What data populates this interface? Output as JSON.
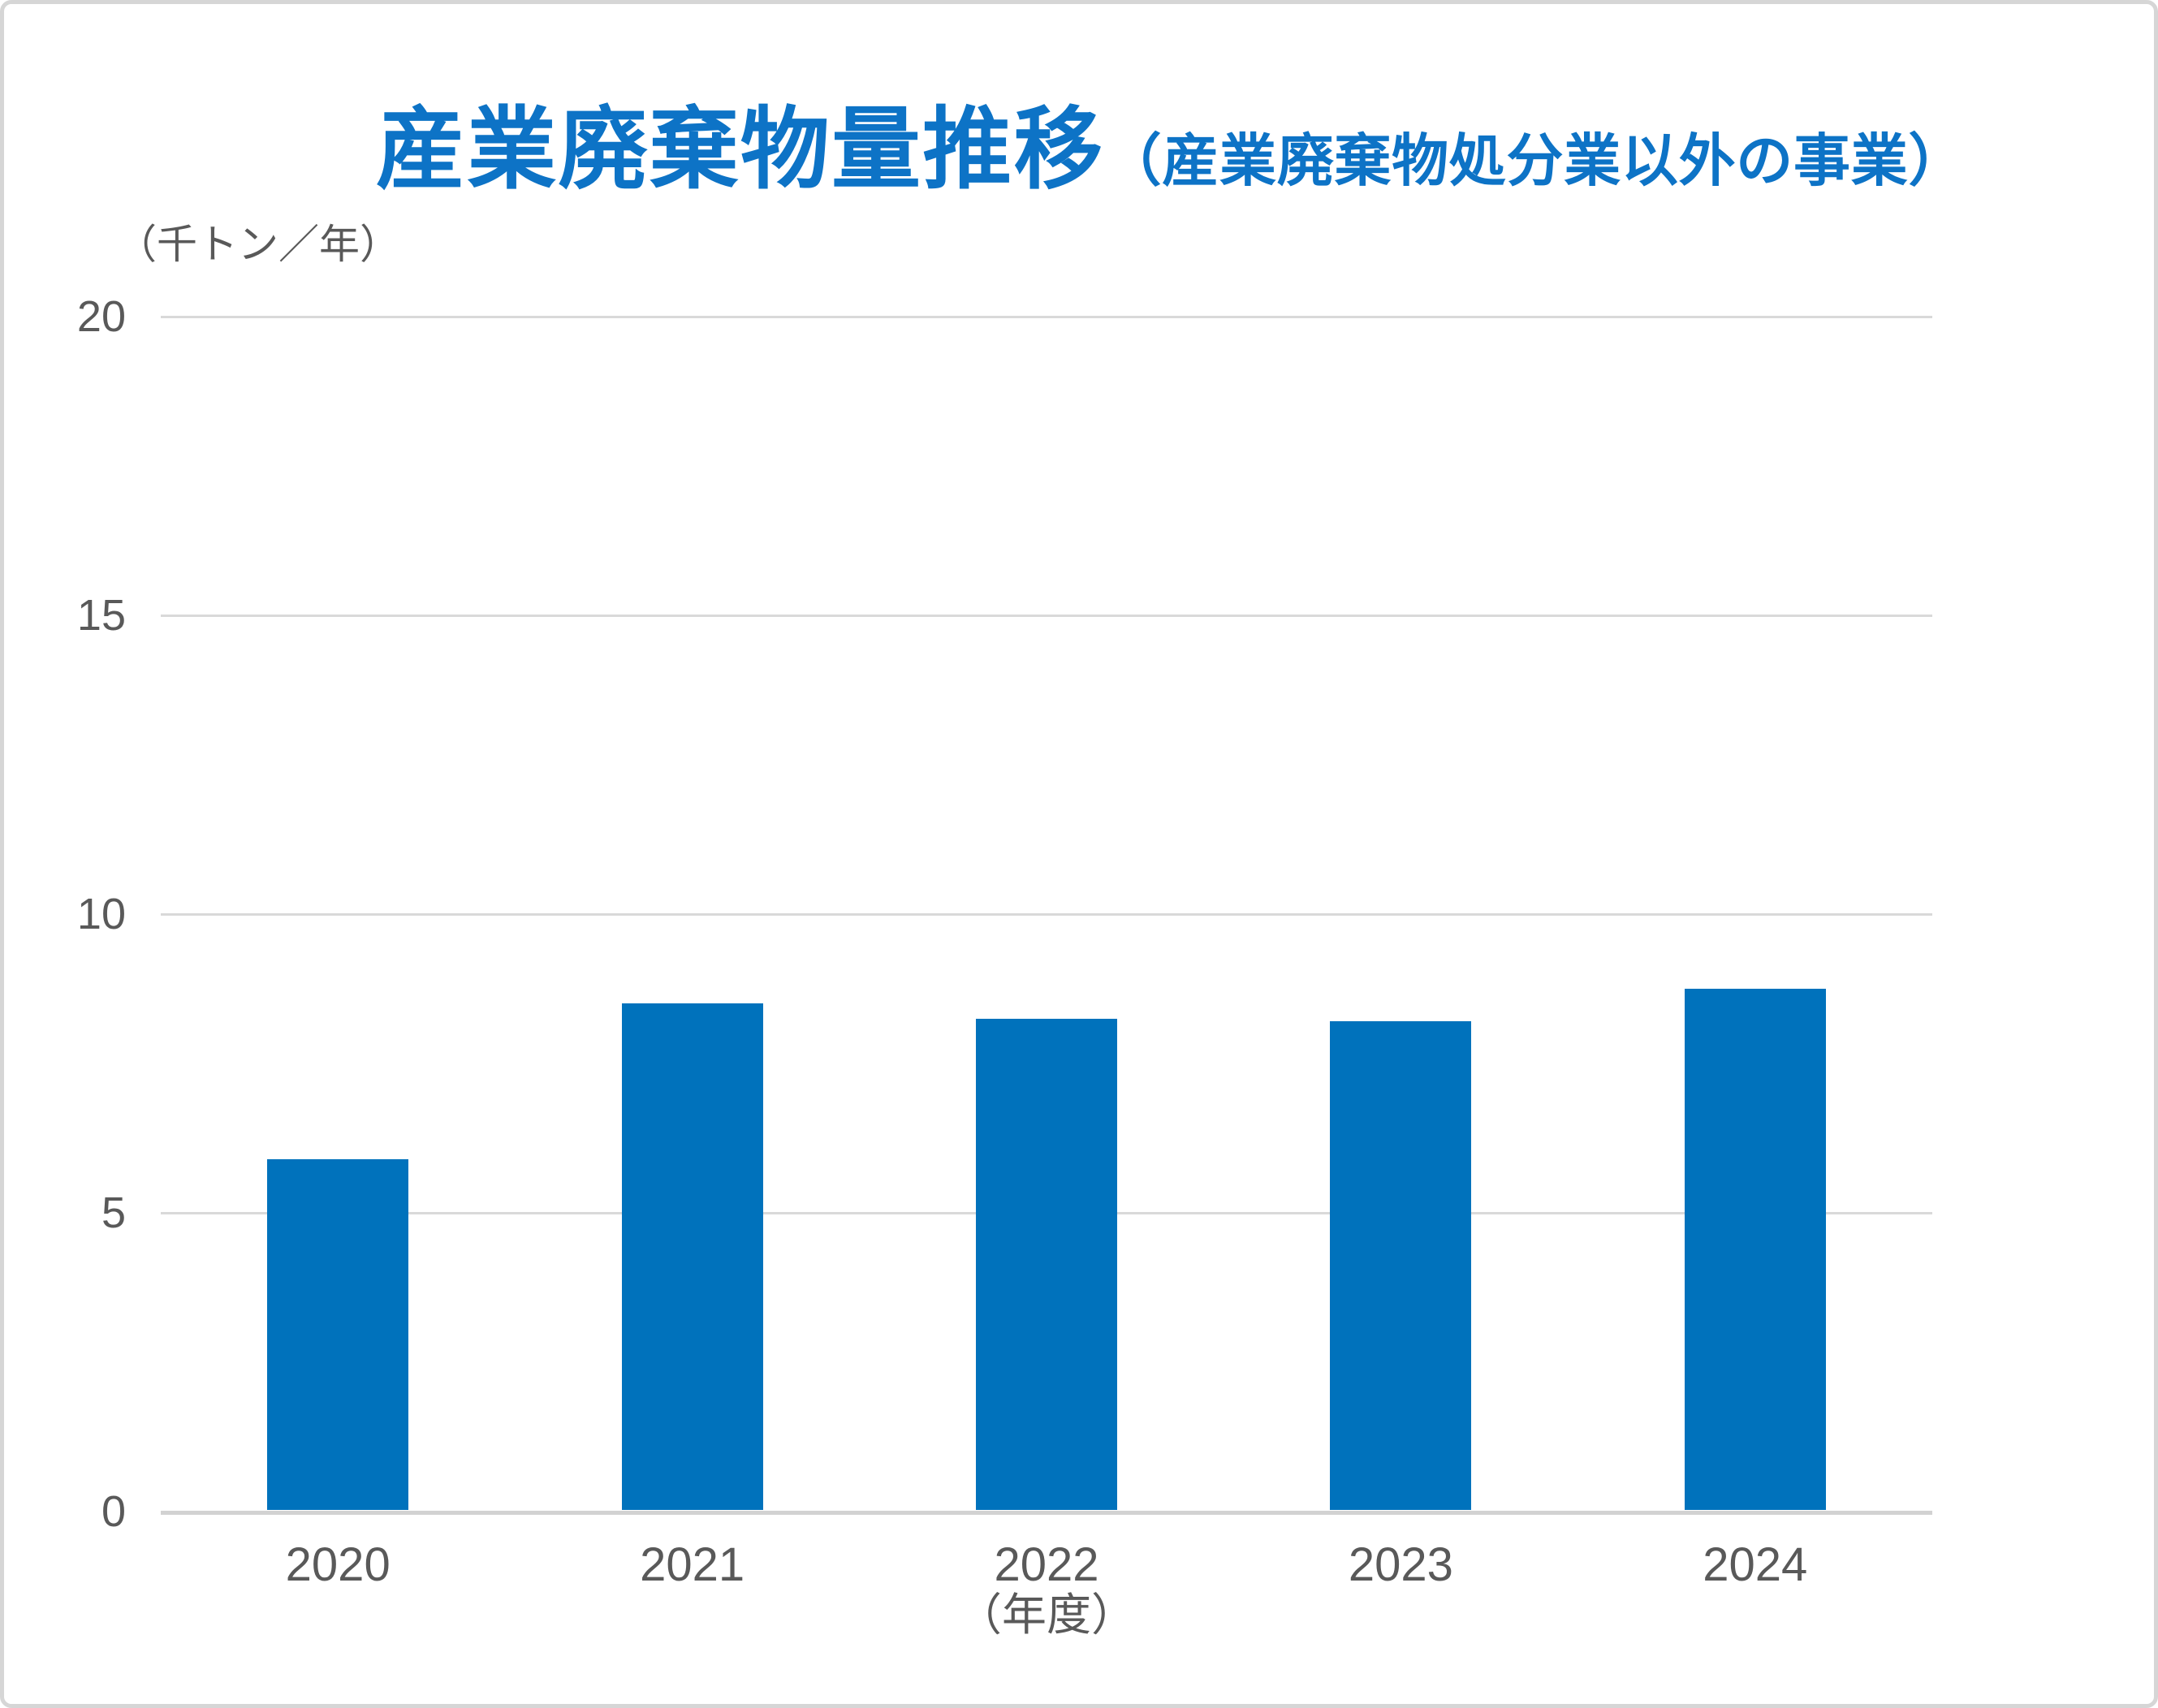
{
  "page": {
    "background_color": "#ffffff",
    "border_color": "#d6d6d6"
  },
  "title": {
    "main": "産業廃棄物量推移",
    "sub": "（産業廃棄物処分業以外の事業）",
    "color": "#0d73c6"
  },
  "y_axis": {
    "unit_label": "（千トン／年）",
    "tick_color": "#595959"
  },
  "x_axis": {
    "axis_label": "（年度）",
    "tick_color": "#595959"
  },
  "chart_data": {
    "type": "bar",
    "categories": [
      "2020",
      "2021",
      "2022",
      "2023",
      "2024"
    ],
    "values": [
      5.9,
      8.5,
      8.25,
      8.2,
      8.75
    ],
    "title": "産業廃棄物量推移（産業廃棄物処分業以外の事業）",
    "xlabel": "（年度）",
    "ylabel": "（千トン／年）",
    "ylim": [
      0,
      20
    ],
    "yticks": [
      0,
      5,
      10,
      15,
      20
    ],
    "bar_color": "#0072bc",
    "gridline_color": "#d9d9d9",
    "grid": true,
    "legend": false
  }
}
